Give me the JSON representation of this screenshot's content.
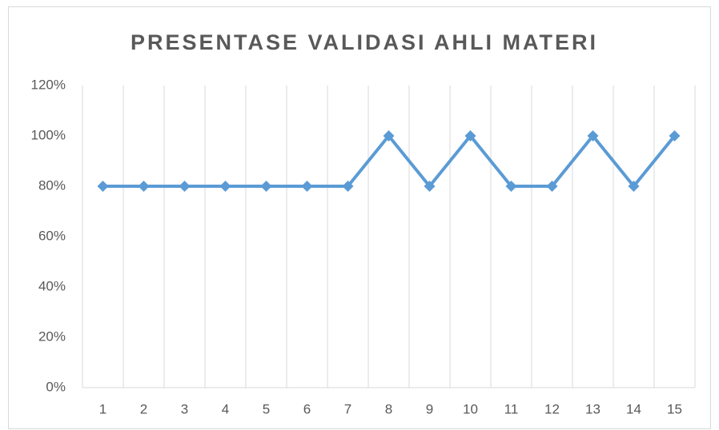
{
  "chart_data": {
    "type": "line",
    "title": "PRESENTASE VALIDASI AHLI MATERI",
    "categories": [
      "1",
      "2",
      "3",
      "4",
      "5",
      "6",
      "7",
      "8",
      "9",
      "10",
      "11",
      "12",
      "13",
      "14",
      "15"
    ],
    "series": [
      {
        "color": "#5b9bd5",
        "values": [
          80,
          80,
          80,
          80,
          80,
          80,
          80,
          100,
          80,
          100,
          80,
          80,
          100,
          80,
          100
        ]
      }
    ],
    "ylim": [
      0,
      120
    ],
    "yticks": [
      {
        "value": 0,
        "label": "0%"
      },
      {
        "value": 20,
        "label": "20%"
      },
      {
        "value": 40,
        "label": "40%"
      },
      {
        "value": 60,
        "label": "60%"
      },
      {
        "value": 80,
        "label": "80%"
      },
      {
        "value": 100,
        "label": "100%"
      },
      {
        "value": 120,
        "label": "120%"
      }
    ],
    "grid": "x",
    "marker": "diamond"
  }
}
